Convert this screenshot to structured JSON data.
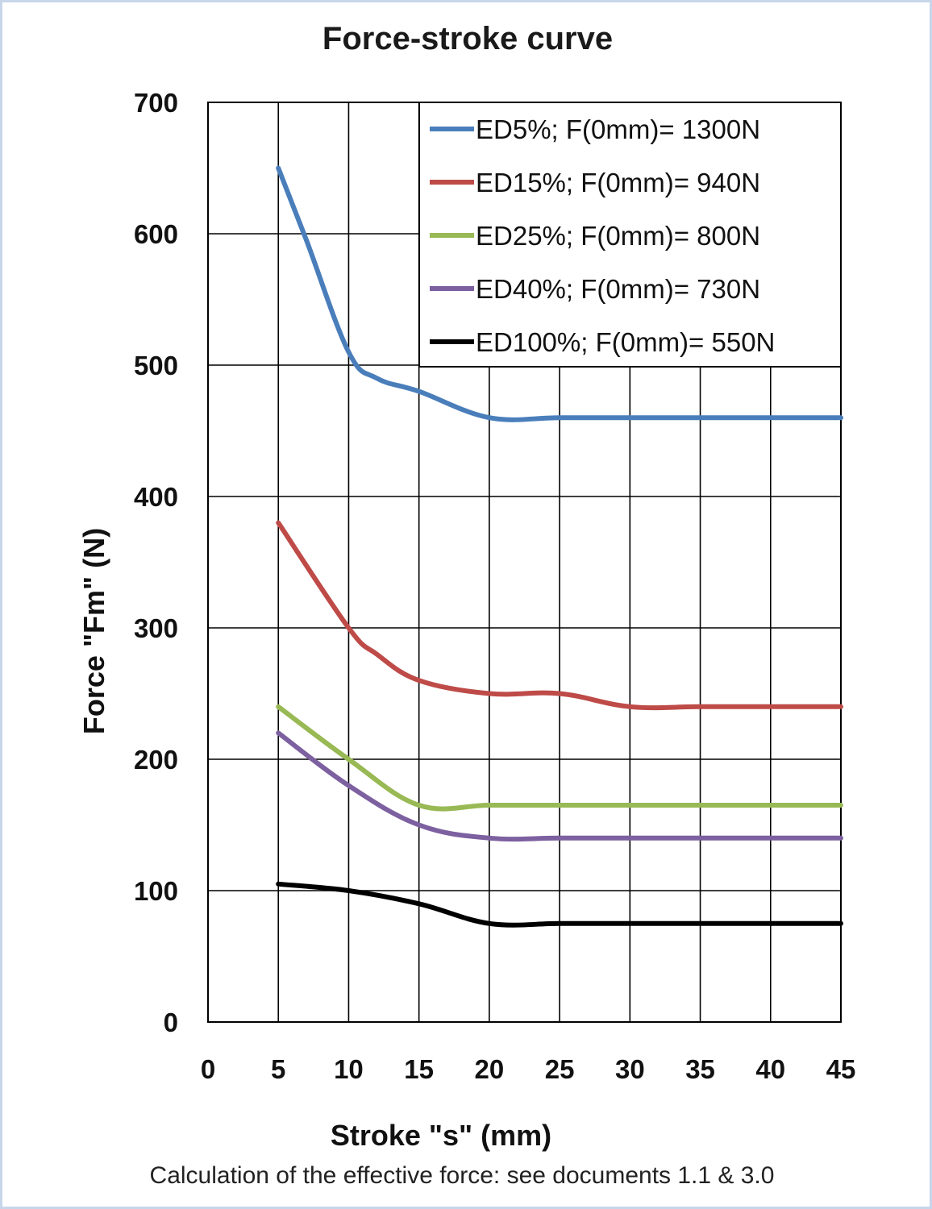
{
  "chart_data": {
    "type": "line",
    "title": "Force-stroke curve",
    "xlabel": "Stroke \"s\" (mm)",
    "ylabel": "Force \"Fm\" (N)",
    "xlim": [
      0,
      45
    ],
    "ylim": [
      0,
      700
    ],
    "x_ticks": [
      "0",
      "5",
      "10",
      "15",
      "20",
      "25",
      "30",
      "35",
      "40",
      "45"
    ],
    "y_ticks": [
      "0",
      "100",
      "200",
      "300",
      "400",
      "500",
      "600",
      "700"
    ],
    "grid": true,
    "legend_position": "top-right",
    "series": [
      {
        "name": "ED5%; F(0mm)= 1300N",
        "color": "#4a7ebb",
        "points": [
          [
            5,
            650
          ],
          [
            7,
            595
          ],
          [
            10,
            510
          ],
          [
            12,
            490
          ],
          [
            15,
            480
          ],
          [
            20,
            460
          ],
          [
            25,
            460
          ],
          [
            30,
            460
          ],
          [
            35,
            460
          ],
          [
            40,
            460
          ],
          [
            45,
            460
          ]
        ]
      },
      {
        "name": "ED15%; F(0mm)= 940N",
        "color": "#be4b48",
        "points": [
          [
            5,
            380
          ],
          [
            10,
            300
          ],
          [
            12,
            280
          ],
          [
            15,
            260
          ],
          [
            20,
            250
          ],
          [
            25,
            250
          ],
          [
            30,
            240
          ],
          [
            35,
            240
          ],
          [
            40,
            240
          ],
          [
            45,
            240
          ]
        ]
      },
      {
        "name": "ED25%; F(0mm)= 800N",
        "color": "#98b954",
        "points": [
          [
            5,
            240
          ],
          [
            10,
            200
          ],
          [
            15,
            165
          ],
          [
            20,
            165
          ],
          [
            25,
            165
          ],
          [
            30,
            165
          ],
          [
            35,
            165
          ],
          [
            40,
            165
          ],
          [
            45,
            165
          ]
        ]
      },
      {
        "name": "ED40%; F(0mm)= 730N",
        "color": "#7d60a0",
        "points": [
          [
            5,
            220
          ],
          [
            10,
            180
          ],
          [
            15,
            150
          ],
          [
            20,
            140
          ],
          [
            25,
            140
          ],
          [
            30,
            140
          ],
          [
            35,
            140
          ],
          [
            40,
            140
          ],
          [
            45,
            140
          ]
        ]
      },
      {
        "name": "ED100%; F(0mm)= 550N",
        "color": "#000000",
        "points": [
          [
            5,
            105
          ],
          [
            10,
            100
          ],
          [
            15,
            90
          ],
          [
            20,
            75
          ],
          [
            25,
            75
          ],
          [
            30,
            75
          ],
          [
            35,
            75
          ],
          [
            40,
            75
          ],
          [
            45,
            75
          ]
        ]
      }
    ],
    "note": "Calculation of the effective force: see documents 1.1 & 3.0"
  }
}
